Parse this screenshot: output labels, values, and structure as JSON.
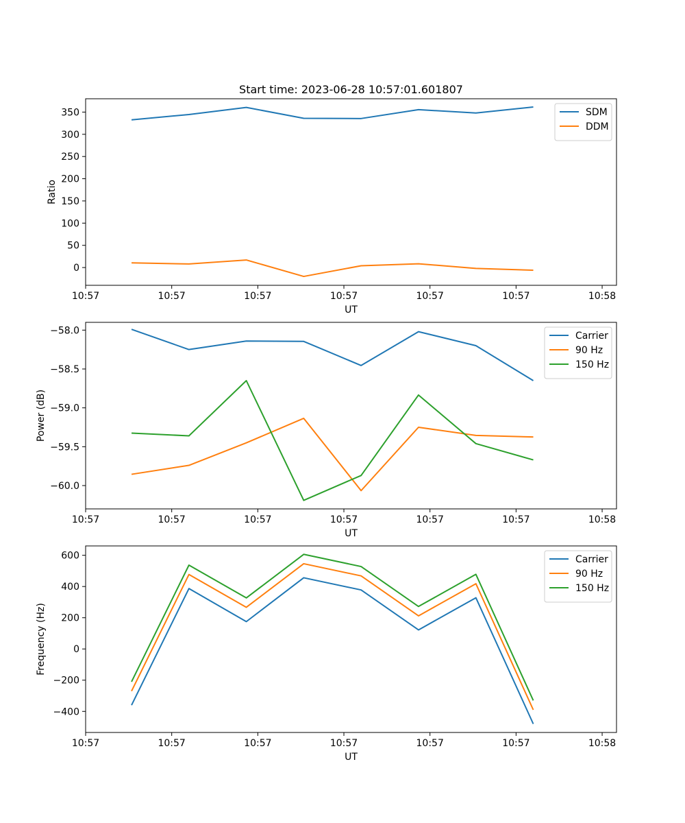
{
  "figure": {
    "title": "Start time: 2023-06-28 10:57:01.601807"
  },
  "colors": {
    "blue": "#1f77b4",
    "orange": "#ff7f0e",
    "green": "#2ca02c"
  },
  "chart_data": [
    {
      "type": "line",
      "title": "Start time: 2023-06-28 10:57:01.601807",
      "xlabel": "UT",
      "ylabel": "Ratio",
      "x": [
        1.0,
        2.0,
        3.0,
        4.0,
        5.0,
        6.0,
        7.0,
        8.0
      ],
      "xlim": [
        0.2,
        9.45
      ],
      "xticks": [
        0.2,
        1.7,
        3.2,
        4.7,
        6.2,
        7.7,
        9.2
      ],
      "xtick_labels": [
        "10:57",
        "10:57",
        "10:57",
        "10:57",
        "10:57",
        "10:57",
        "10:58"
      ],
      "ylim": [
        -40,
        380
      ],
      "yticks": [
        0,
        50,
        100,
        150,
        200,
        250,
        300,
        350
      ],
      "ytick_labels": [
        "0",
        "50",
        "100",
        "150",
        "200",
        "250",
        "300",
        "350"
      ],
      "grid": false,
      "legend": "top-right",
      "series": [
        {
          "name": "SDM",
          "color": "#1f77b4",
          "values": [
            332.5,
            344.5,
            360.5,
            336.0,
            335.5,
            355.5,
            348.0,
            361.5
          ]
        },
        {
          "name": "DDM",
          "color": "#ff7f0e",
          "values": [
            10.5,
            8.0,
            17.0,
            -20.0,
            4.0,
            8.5,
            -2.0,
            -6.0
          ]
        }
      ]
    },
    {
      "type": "line",
      "title": "",
      "xlabel": "UT",
      "ylabel": "Power (dB)",
      "x": [
        1.0,
        2.0,
        3.0,
        4.0,
        5.0,
        6.0,
        7.0,
        8.0
      ],
      "xlim": [
        0.2,
        9.45
      ],
      "xticks": [
        0.2,
        1.7,
        3.2,
        4.7,
        6.2,
        7.7,
        9.2
      ],
      "xtick_labels": [
        "10:57",
        "10:57",
        "10:57",
        "10:57",
        "10:57",
        "10:57",
        "10:58"
      ],
      "ylim": [
        -60.3,
        -57.9
      ],
      "yticks": [
        -60.0,
        -59.5,
        -59.0,
        -58.5,
        -58.0
      ],
      "ytick_labels": [
        "−60.0",
        "−59.5",
        "−59.0",
        "−58.5",
        "−58.0"
      ],
      "grid": false,
      "legend": "top-right",
      "series": [
        {
          "name": "Carrier",
          "color": "#1f77b4",
          "values": [
            -57.99,
            -58.25,
            -58.14,
            -58.145,
            -58.455,
            -58.02,
            -58.2,
            -58.65
          ]
        },
        {
          "name": "90 Hz",
          "color": "#ff7f0e",
          "values": [
            -59.855,
            -59.74,
            -59.45,
            -59.135,
            -60.065,
            -59.25,
            -59.355,
            -59.375
          ]
        },
        {
          "name": "150 Hz",
          "color": "#2ca02c",
          "values": [
            -59.325,
            -59.36,
            -58.65,
            -60.19,
            -59.87,
            -58.835,
            -59.46,
            -59.67
          ]
        }
      ]
    },
    {
      "type": "line",
      "title": "",
      "xlabel": "UT",
      "ylabel": "Frequency (Hz)",
      "x": [
        1.0,
        2.0,
        3.0,
        4.0,
        5.0,
        6.0,
        7.0,
        8.0
      ],
      "xlim": [
        0.2,
        9.45
      ],
      "xticks": [
        0.2,
        1.7,
        3.2,
        4.7,
        6.2,
        7.7,
        9.2
      ],
      "xtick_labels": [
        "10:57",
        "10:57",
        "10:57",
        "10:57",
        "10:57",
        "10:57",
        "10:58"
      ],
      "ylim": [
        -535,
        660
      ],
      "yticks": [
        -400,
        -200,
        0,
        200,
        400,
        600
      ],
      "ytick_labels": [
        "−400",
        "−200",
        "0",
        "200",
        "400",
        "600"
      ],
      "grid": false,
      "legend": "top-right",
      "series": [
        {
          "name": "Carrier",
          "color": "#1f77b4",
          "values": [
            -360,
            387,
            175,
            456,
            378,
            122,
            328,
            -480
          ]
        },
        {
          "name": "90 Hz",
          "color": "#ff7f0e",
          "values": [
            -270,
            477,
            267,
            546,
            468,
            212,
            418,
            -390
          ]
        },
        {
          "name": "150 Hz",
          "color": "#2ca02c",
          "values": [
            -210,
            537,
            327,
            606,
            528,
            272,
            478,
            -330
          ]
        }
      ]
    }
  ]
}
